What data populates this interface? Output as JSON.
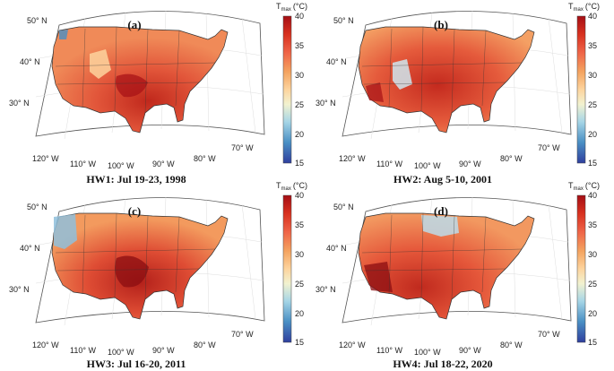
{
  "colorbar": {
    "title_main": "T",
    "title_sub": "max",
    "title_unit": "(°C)",
    "ticks": [
      "40",
      "35",
      "30",
      "25",
      "20",
      "15"
    ],
    "stops": [
      "#a50f15",
      "#d7301f",
      "#ef6548",
      "#f4a460",
      "#fdd49e",
      "#f2f2d0",
      "#a6d5e6",
      "#4a8fc4",
      "#2f3f9e"
    ]
  },
  "panels": [
    {
      "id": "a",
      "label": "(a)",
      "caption": "HW1: Jul 19-23, 1998",
      "lat_labels": [
        "50° N",
        "40° N",
        "30° N"
      ],
      "lon_labels": [
        "120° W",
        "110° W",
        "100° W",
        "90° W",
        "80° W",
        "70° W"
      ]
    },
    {
      "id": "b",
      "label": "(b)",
      "caption": "HW2: Aug 5-10, 2001",
      "lat_labels": [
        "50° N",
        "40° N",
        "30° N"
      ],
      "lon_labels": [
        "120° W",
        "110° W",
        "100° W",
        "90° W",
        "80° W",
        "70° W"
      ]
    },
    {
      "id": "c",
      "label": "(c)",
      "caption": "HW3: Jul 16-20, 2011",
      "lat_labels": [
        "50° N",
        "40° N",
        "30° N"
      ],
      "lon_labels": [
        "120° W",
        "110° W",
        "100° W",
        "90° W",
        "80° W",
        "70° W"
      ]
    },
    {
      "id": "d",
      "label": "(d)",
      "caption": "HW4: Jul 18-22, 2020",
      "lat_labels": [
        "50° N",
        "40° N",
        "30° N"
      ],
      "lon_labels": [
        "120° W",
        "110° W",
        "100° W",
        "90° W",
        "80° W",
        "70° W"
      ]
    }
  ]
}
